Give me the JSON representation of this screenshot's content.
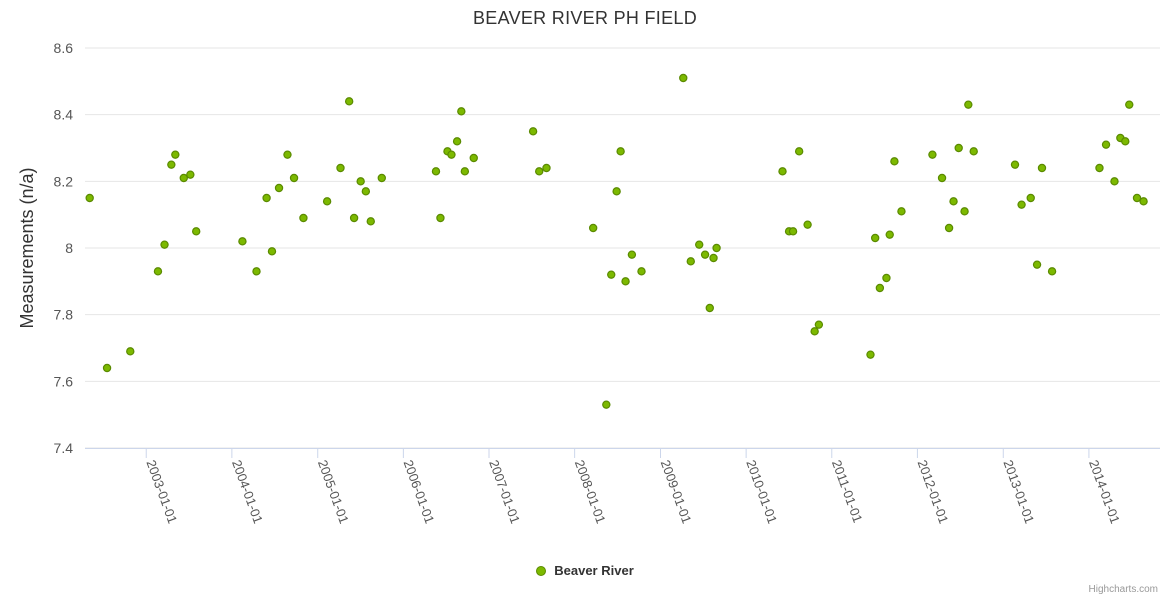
{
  "chart_data": {
    "type": "scatter",
    "title": "BEAVER RIVER PH FIELD",
    "ylabel": "Measurements (n/a)",
    "xlabel": "",
    "ylim": [
      7.4,
      8.6
    ],
    "yticks": [
      "7.4",
      "7.6",
      "7.8",
      "8",
      "8.2",
      "8.4",
      "8.6"
    ],
    "xlim": [
      "2002-04-15",
      "2014-10-31"
    ],
    "xticks": [
      "2003-01-01",
      "2004-01-01",
      "2005-01-01",
      "2006-01-01",
      "2007-01-01",
      "2008-01-01",
      "2009-01-01",
      "2010-01-01",
      "2011-01-01",
      "2012-01-01",
      "2013-01-01",
      "2014-01-01"
    ],
    "grid": true,
    "legend": "bottom-center",
    "series": [
      {
        "name": "Beaver River",
        "color": "#7cb900",
        "border_color": "#5a8a00",
        "points": [
          [
            "2002-05-05",
            8.15
          ],
          [
            "2002-07-18",
            7.64
          ],
          [
            "2002-10-25",
            7.69
          ],
          [
            "2003-02-20",
            7.93
          ],
          [
            "2003-03-20",
            8.01
          ],
          [
            "2003-04-18",
            8.25
          ],
          [
            "2003-05-05",
            8.28
          ],
          [
            "2003-06-10",
            8.21
          ],
          [
            "2003-07-08",
            8.22
          ],
          [
            "2003-08-02",
            8.05
          ],
          [
            "2004-02-15",
            8.02
          ],
          [
            "2004-04-15",
            7.93
          ],
          [
            "2004-05-28",
            8.15
          ],
          [
            "2004-06-20",
            7.99
          ],
          [
            "2004-07-20",
            8.18
          ],
          [
            "2004-08-25",
            8.28
          ],
          [
            "2004-09-22",
            8.21
          ],
          [
            "2004-11-01",
            8.09
          ],
          [
            "2005-02-10",
            8.14
          ],
          [
            "2005-04-08",
            8.24
          ],
          [
            "2005-05-15",
            8.44
          ],
          [
            "2005-06-05",
            8.09
          ],
          [
            "2005-07-03",
            8.2
          ],
          [
            "2005-07-25",
            8.17
          ],
          [
            "2005-08-15",
            8.08
          ],
          [
            "2005-10-01",
            8.21
          ],
          [
            "2006-05-20",
            8.23
          ],
          [
            "2006-06-08",
            8.09
          ],
          [
            "2006-07-08",
            8.29
          ],
          [
            "2006-07-25",
            8.28
          ],
          [
            "2006-08-18",
            8.32
          ],
          [
            "2006-09-05",
            8.41
          ],
          [
            "2006-09-20",
            8.23
          ],
          [
            "2006-10-28",
            8.27
          ],
          [
            "2007-07-08",
            8.35
          ],
          [
            "2007-08-03",
            8.23
          ],
          [
            "2007-09-03",
            8.24
          ],
          [
            "2008-03-20",
            8.06
          ],
          [
            "2008-05-15",
            7.53
          ],
          [
            "2008-06-05",
            7.92
          ],
          [
            "2008-06-28",
            8.17
          ],
          [
            "2008-07-15",
            8.29
          ],
          [
            "2008-08-05",
            7.9
          ],
          [
            "2008-09-01",
            7.98
          ],
          [
            "2008-10-12",
            7.93
          ],
          [
            "2009-04-08",
            8.51
          ],
          [
            "2009-05-10",
            7.96
          ],
          [
            "2009-06-15",
            8.01
          ],
          [
            "2009-07-10",
            7.98
          ],
          [
            "2009-07-30",
            7.82
          ],
          [
            "2009-08-15",
            7.97
          ],
          [
            "2009-08-28",
            8.0
          ],
          [
            "2010-06-05",
            8.23
          ],
          [
            "2010-07-03",
            8.05
          ],
          [
            "2010-07-20",
            8.05
          ],
          [
            "2010-08-15",
            8.29
          ],
          [
            "2010-09-20",
            8.07
          ],
          [
            "2010-10-20",
            7.75
          ],
          [
            "2010-11-07",
            7.77
          ],
          [
            "2011-06-15",
            7.68
          ],
          [
            "2011-07-05",
            8.03
          ],
          [
            "2011-07-25",
            7.88
          ],
          [
            "2011-08-22",
            7.91
          ],
          [
            "2011-09-05",
            8.04
          ],
          [
            "2011-09-25",
            8.26
          ],
          [
            "2011-10-25",
            8.11
          ],
          [
            "2012-03-05",
            8.28
          ],
          [
            "2012-04-15",
            8.21
          ],
          [
            "2012-05-15",
            8.06
          ],
          [
            "2012-06-03",
            8.14
          ],
          [
            "2012-06-25",
            8.3
          ],
          [
            "2012-07-20",
            8.11
          ],
          [
            "2012-08-05",
            8.43
          ],
          [
            "2012-08-28",
            8.29
          ],
          [
            "2013-02-20",
            8.25
          ],
          [
            "2013-03-20",
            8.13
          ],
          [
            "2013-04-28",
            8.15
          ],
          [
            "2013-05-25",
            7.95
          ],
          [
            "2013-06-15",
            8.24
          ],
          [
            "2013-07-28",
            7.93
          ],
          [
            "2014-02-15",
            8.24
          ],
          [
            "2014-03-15",
            8.31
          ],
          [
            "2014-04-20",
            8.2
          ],
          [
            "2014-05-15",
            8.33
          ],
          [
            "2014-06-05",
            8.32
          ],
          [
            "2014-06-22",
            8.43
          ],
          [
            "2014-07-25",
            8.15
          ],
          [
            "2014-08-22",
            8.14
          ]
        ]
      }
    ]
  },
  "credits": "Highcharts.com"
}
